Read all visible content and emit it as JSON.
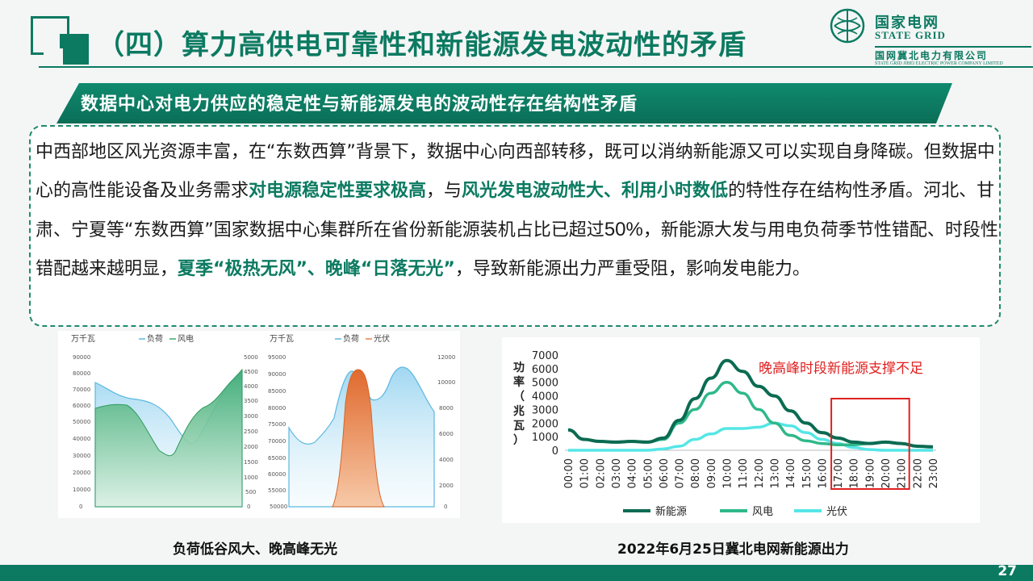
{
  "header": {
    "title": "（四）算力高供电可靠性和新能源发电波动性的矛盾",
    "brand_cn": "国家电网",
    "brand_en": "STATE GRID",
    "company_cn": "国网冀北电力有限公司",
    "company_en": "STATE GRID JIBEI ELECTRIC POWER COMPANY LIMITED"
  },
  "banner": {
    "text": "数据中心对电力供应的稳定性与新能源发电的波动性存在结构性矛盾"
  },
  "body": {
    "seg1": "中西部地区风光资源丰富，在“东数西算”背景下，数据中心向西部转移，既可以消纳新能源又可以实现自身降碳。但数据中心的高性能设备及业务需求",
    "seg2": "对电源稳定性要求极高",
    "seg3": "，与",
    "seg4": "风光发电波动性大、利用小时数低",
    "seg5": "的特性存在结构性矛盾。河北、甘肃、宁夏等“东数西算”国家数据中心集群所在省份新能源装机占比已超过",
    "seg6": "50%",
    "seg7": "，新能源大发与用电负荷季节性错配、时段性错配越来越明显，",
    "seg8": "夏季“极热无风”、晚峰“日落无光”",
    "seg9": "，导致新能源出力严重受阻，影响发电能力。"
  },
  "colors": {
    "brand_green": "#0b7a61",
    "load_blue": "#5cb8e0",
    "wind_green": "#3aaa6e",
    "solar_orange": "#e8824a",
    "highlight_red": "#e02020"
  },
  "left_charts": [
    {
      "unit": "万千瓦",
      "legend": [
        "负荷",
        "风电"
      ],
      "left_ticks": [
        "90000",
        "80000",
        "70000",
        "60000",
        "50000",
        "40000",
        "30000",
        "20000",
        "10000",
        "0"
      ],
      "right_ticks": [
        "5000",
        "4500",
        "4000",
        "3500",
        "3000",
        "2500",
        "2000",
        "1500",
        "1000",
        "500",
        "0"
      ]
    },
    {
      "unit": "万千瓦",
      "legend": [
        "负荷",
        "光伏"
      ],
      "left_ticks": [
        "95000",
        "90000",
        "85000",
        "80000",
        "75000",
        "70000",
        "65000",
        "60000",
        "55000",
        "50000"
      ],
      "right_ticks": [
        "12000",
        "10000",
        "8000",
        "6000",
        "4000",
        "2000",
        "0"
      ]
    }
  ],
  "captions": {
    "left": "负荷低谷风大、晚高峰无光",
    "right": "2022年6月25日冀北电网新能源出力"
  },
  "chart_data": {
    "type": "line",
    "title": "",
    "ylabel": "功率（兆瓦）",
    "ylim": [
      0,
      7000
    ],
    "yticks": [
      "7000",
      "6000",
      "5000",
      "4000",
      "3000",
      "2000",
      "1000",
      "0"
    ],
    "categories": [
      "00:00",
      "01:00",
      "02:00",
      "03:00",
      "04:00",
      "05:00",
      "06:00",
      "07:00",
      "08:00",
      "09:00",
      "10:00",
      "11:00",
      "12:00",
      "13:00",
      "14:00",
      "15:00",
      "16:00",
      "17:00",
      "18:00",
      "19:00",
      "20:00",
      "21:00",
      "22:00",
      "23:00"
    ],
    "series": [
      {
        "name": "新能源",
        "color": "#0b6b52",
        "values": [
          1500,
          800,
          650,
          600,
          650,
          600,
          900,
          2200,
          3800,
          5300,
          6600,
          5800,
          4700,
          4000,
          2900,
          2000,
          1300,
          900,
          600,
          500,
          600,
          500,
          300,
          250
        ]
      },
      {
        "name": "风电",
        "color": "#2fb88a",
        "values": [
          1500,
          800,
          650,
          600,
          650,
          600,
          800,
          2000,
          3000,
          4200,
          5000,
          4200,
          3000,
          2000,
          1100,
          700,
          500,
          400,
          400,
          500,
          600,
          500,
          300,
          250
        ]
      },
      {
        "name": "光伏",
        "color": "#55e6e6",
        "values": [
          0,
          0,
          0,
          0,
          0,
          0,
          100,
          300,
          800,
          1200,
          1600,
          1600,
          1700,
          2000,
          1800,
          1300,
          800,
          500,
          200,
          50,
          0,
          0,
          0,
          0
        ]
      }
    ],
    "annotation": "晚高峰时段新能源支撑不足",
    "highlight_range": [
      "17:00",
      "21:00"
    ]
  },
  "page_number": "27"
}
